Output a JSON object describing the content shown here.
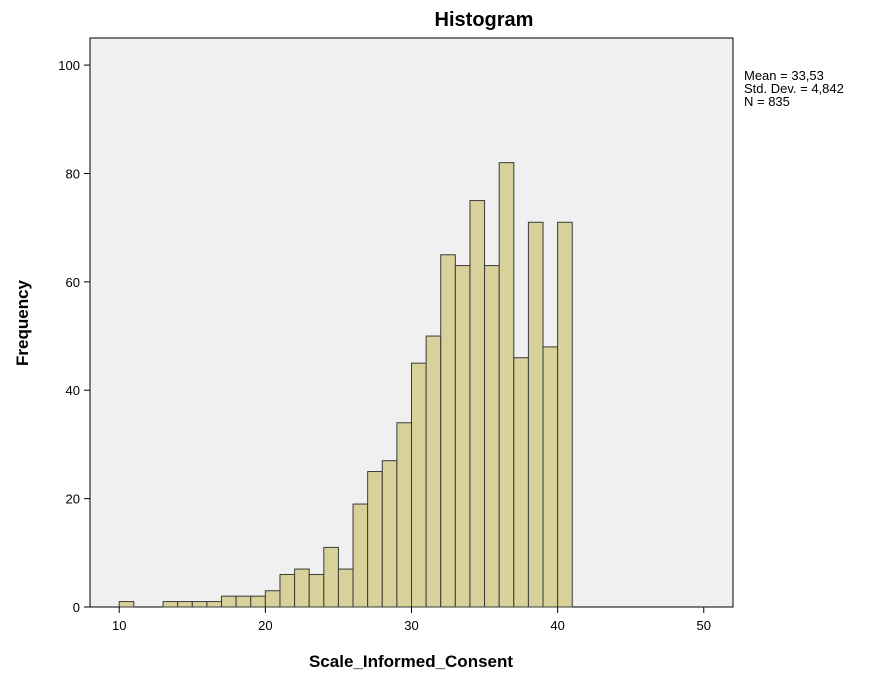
{
  "chart_data": {
    "type": "bar",
    "title": "Histogram",
    "xlabel": "Scale_Informed_Consent",
    "ylabel": "Frequency",
    "xlim": [
      8,
      52
    ],
    "ylim": [
      0,
      105
    ],
    "xticks": [
      10,
      20,
      30,
      40,
      50
    ],
    "yticks": [
      0,
      20,
      40,
      60,
      80,
      100
    ],
    "bin_width": 1,
    "bins": [
      {
        "x": 10.5,
        "value": 1
      },
      {
        "x": 13.5,
        "value": 1
      },
      {
        "x": 14.5,
        "value": 1
      },
      {
        "x": 15.5,
        "value": 1
      },
      {
        "x": 16.5,
        "value": 1
      },
      {
        "x": 17.5,
        "value": 2
      },
      {
        "x": 18.5,
        "value": 2
      },
      {
        "x": 19.5,
        "value": 2
      },
      {
        "x": 20.5,
        "value": 3
      },
      {
        "x": 21.5,
        "value": 6
      },
      {
        "x": 22.5,
        "value": 7
      },
      {
        "x": 23.5,
        "value": 6
      },
      {
        "x": 24.5,
        "value": 11
      },
      {
        "x": 25.5,
        "value": 7
      },
      {
        "x": 26.5,
        "value": 19
      },
      {
        "x": 27.5,
        "value": 25
      },
      {
        "x": 28.5,
        "value": 27
      },
      {
        "x": 29.5,
        "value": 34
      },
      {
        "x": 30.5,
        "value": 45
      },
      {
        "x": 31.5,
        "value": 50
      },
      {
        "x": 32.5,
        "value": 65
      },
      {
        "x": 33.5,
        "value": 63
      },
      {
        "x": 34.5,
        "value": 75
      },
      {
        "x": 35.5,
        "value": 63
      },
      {
        "x": 36.5,
        "value": 82
      },
      {
        "x": 37.5,
        "value": 46
      },
      {
        "x": 38.5,
        "value": 71
      },
      {
        "x": 39.5,
        "value": 48
      },
      {
        "x": 40.5,
        "value": 71
      }
    ],
    "stats": [
      "Mean = 33,53",
      "Std. Dev. = 4,842",
      "N = 835"
    ],
    "grid": false,
    "colors": {
      "bar_fill": "#d9d19a",
      "bar_stroke": "#3a3a3a",
      "plot_bg": "#f0f0f0",
      "axis": "#000000"
    }
  }
}
